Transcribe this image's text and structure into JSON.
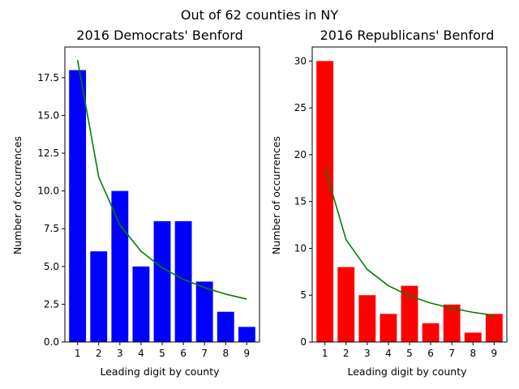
{
  "figure": {
    "suptitle": "Out of 62 counties in NY"
  },
  "chart_data": [
    {
      "type": "bar",
      "title": "2016 Democrats' Benford",
      "xlabel": "Leading digit by county",
      "ylabel": "Number of occurrences",
      "categories": [
        "1",
        "2",
        "3",
        "4",
        "5",
        "6",
        "7",
        "8",
        "9"
      ],
      "values": [
        18,
        6,
        10,
        5,
        8,
        8,
        4,
        2,
        1
      ],
      "bar_color": "#0000ff",
      "ylim": [
        0,
        19.53
      ],
      "yticks": [
        0.0,
        2.5,
        5.0,
        7.5,
        10.0,
        12.5,
        15.0,
        17.5
      ],
      "ytick_labels": [
        "0.0",
        "2.5",
        "5.0",
        "7.5",
        "10.0",
        "12.5",
        "15.0",
        "17.5"
      ],
      "benford_line": {
        "color": "#008000",
        "values": [
          18.66,
          10.92,
          7.75,
          6.01,
          4.91,
          4.15,
          3.6,
          3.17,
          2.84
        ]
      },
      "grid": false,
      "legend": "none"
    },
    {
      "type": "bar",
      "title": "2016 Republicans' Benford",
      "xlabel": "Leading digit by county",
      "ylabel": "Number of occurrences",
      "categories": [
        "1",
        "2",
        "3",
        "4",
        "5",
        "6",
        "7",
        "8",
        "9"
      ],
      "values": [
        30,
        8,
        5,
        3,
        6,
        2,
        4,
        1,
        3
      ],
      "bar_color": "#ff0000",
      "ylim": [
        0,
        31.5
      ],
      "yticks": [
        0,
        5,
        10,
        15,
        20,
        25,
        30
      ],
      "ytick_labels": [
        "0",
        "5",
        "10",
        "15",
        "20",
        "25",
        "30"
      ],
      "benford_line": {
        "color": "#008000",
        "values": [
          18.66,
          10.92,
          7.75,
          6.01,
          4.91,
          4.15,
          3.6,
          3.17,
          2.84
        ]
      },
      "grid": false,
      "legend": "none"
    }
  ]
}
